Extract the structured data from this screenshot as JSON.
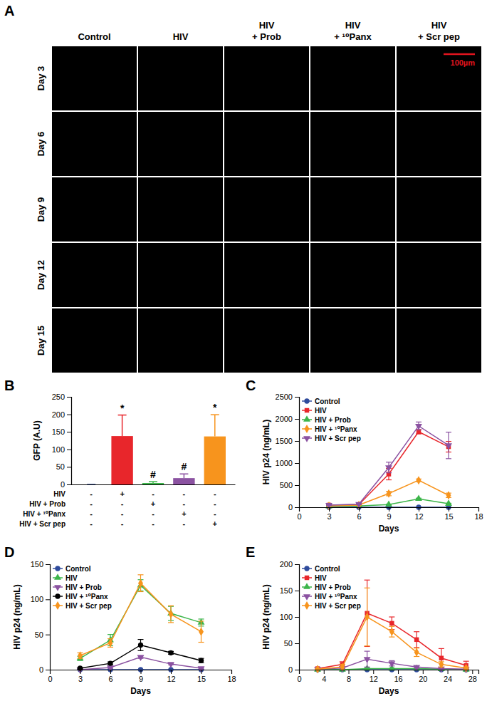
{
  "chart_data": [
    {
      "type": "image_grid",
      "panel": "A",
      "columns": [
        "Control",
        "HIV",
        "HIV + Prob",
        "HIV + ¹⁰Panx",
        "HIV + Scr pep"
      ],
      "rows": [
        "Day 3",
        "Day 6",
        "Day 9",
        "Day 12",
        "Day 15"
      ],
      "scale_bar": "100µm"
    },
    {
      "type": "bar",
      "panel": "B",
      "y_label": "GFP (A.U)",
      "categories": [
        null,
        null,
        null,
        null,
        null
      ],
      "values": [
        0,
        138,
        4,
        18,
        137
      ],
      "errors": [
        0,
        60,
        4,
        12,
        62
      ],
      "colors": [
        "#2f4b9c",
        "#e8262b",
        "#3cb54a",
        "#8b52a1",
        "#f7941d"
      ],
      "annotations": [
        null,
        "*",
        "#",
        "#",
        "*"
      ],
      "conditions": {
        "labels": [
          "HIV",
          "HIV + Prob",
          "HIV + ¹⁰Panx",
          "HIV + Scr pep"
        ],
        "signs": [
          [
            "-",
            "+",
            "-",
            "-",
            "-"
          ],
          [
            "-",
            "-",
            "+",
            "-",
            "-"
          ],
          [
            "-",
            "-",
            "-",
            "+",
            "-"
          ],
          [
            "-",
            "-",
            "-",
            "-",
            "+"
          ]
        ]
      },
      "ylim": [
        0,
        250
      ],
      "yticks": [
        0,
        50,
        100,
        150,
        200,
        250
      ],
      "grid": false
    },
    {
      "type": "line",
      "panel": "C",
      "x_label": "Days",
      "y_label": "HIV p24 (ng/mL)",
      "x": [
        3,
        6,
        9,
        12,
        15
      ],
      "xlim": [
        0,
        18
      ],
      "xticks": [
        0,
        3,
        6,
        9,
        12,
        15,
        18
      ],
      "ylim": [
        0,
        2500
      ],
      "yticks": [
        0,
        500,
        1000,
        1500,
        2000,
        2500
      ],
      "legend": "top-left",
      "grid": false,
      "series": [
        {
          "name": "Control",
          "color": "#2f4b9c",
          "marker": "circle",
          "values": [
            0,
            0,
            0,
            0,
            0
          ],
          "errors": [
            0,
            0,
            0,
            0,
            0
          ]
        },
        {
          "name": "HIV",
          "color": "#e8262b",
          "marker": "square",
          "values": [
            50,
            60,
            750,
            1710,
            1370
          ],
          "errors": [
            10,
            10,
            130,
            50,
            120
          ]
        },
        {
          "name": "HIV + Prob",
          "color": "#3cb54a",
          "marker": "triangle",
          "values": [
            20,
            30,
            60,
            190,
            80
          ],
          "errors": [
            5,
            5,
            10,
            15,
            10
          ]
        },
        {
          "name": "HIV + ¹⁰Panx",
          "color": "#f7941d",
          "marker": "diamond",
          "values": [
            30,
            50,
            310,
            610,
            270
          ],
          "errors": [
            5,
            5,
            50,
            30,
            50
          ]
        },
        {
          "name": "HIV + Scr pep",
          "color": "#8b52a1",
          "marker": "triangle-down",
          "values": [
            50,
            70,
            900,
            1840,
            1400
          ],
          "errors": [
            10,
            10,
            120,
            90,
            300
          ]
        }
      ]
    },
    {
      "type": "line",
      "panel": "D",
      "x_label": "Days",
      "y_label": "HIV p24 (ng/mL)",
      "x": [
        3,
        6,
        9,
        12,
        15
      ],
      "xlim": [
        0,
        18
      ],
      "xticks": [
        0,
        3,
        6,
        9,
        12,
        15,
        18
      ],
      "ylim": [
        0,
        150
      ],
      "yticks": [
        0,
        50,
        100,
        150
      ],
      "legend": "top-left",
      "grid": false,
      "series": [
        {
          "name": "Control",
          "color": "#2f4b9c",
          "marker": "circle",
          "values": [
            0,
            0,
            0,
            0,
            0
          ],
          "errors": [
            0,
            0,
            0,
            0,
            0
          ]
        },
        {
          "name": "HIV",
          "color": "#3cb54a",
          "marker": "triangle",
          "values": [
            16,
            42,
            120,
            80,
            67
          ],
          "errors": [
            3,
            8,
            8,
            10,
            5
          ]
        },
        {
          "name": "HIV + Prob",
          "color": "#8b52a1",
          "marker": "triangle-down",
          "values": [
            0,
            3,
            18,
            8,
            2
          ],
          "errors": [
            0,
            1,
            2,
            1,
            1
          ]
        },
        {
          "name": "HIV + ¹⁰Panx",
          "color": "#000000",
          "marker": "circle",
          "values": [
            2,
            9,
            35,
            24,
            13
          ],
          "errors": [
            1,
            2,
            8,
            2,
            3
          ]
        },
        {
          "name": "HIV + Scr pep",
          "color": "#f7941d",
          "marker": "diamond",
          "values": [
            20,
            38,
            123,
            79,
            54
          ],
          "errors": [
            4,
            6,
            12,
            12,
            15
          ]
        }
      ]
    },
    {
      "type": "line",
      "panel": "E",
      "x_label": "Days",
      "y_label": "HIV p24 (ng/mL)",
      "x": [
        3,
        7,
        11,
        15,
        19,
        23,
        27
      ],
      "xlim": [
        0,
        29
      ],
      "xticks": [
        0,
        4,
        8,
        12,
        16,
        20,
        24,
        28
      ],
      "ylim": [
        0,
        200
      ],
      "yticks": [
        0,
        50,
        100,
        150,
        200
      ],
      "legend": "top-left",
      "grid": false,
      "series": [
        {
          "name": "Control",
          "color": "#2f4b9c",
          "marker": "circle",
          "values": [
            0,
            0,
            0,
            0,
            0,
            0,
            0
          ],
          "errors": [
            0,
            0,
            0,
            0,
            0,
            0,
            0
          ]
        },
        {
          "name": "HIV",
          "color": "#e8262b",
          "marker": "square",
          "values": [
            2,
            10,
            107,
            88,
            57,
            22,
            8
          ],
          "errors": [
            1,
            5,
            63,
            12,
            15,
            18,
            8
          ]
        },
        {
          "name": "HIV + Prob",
          "color": "#3cb54a",
          "marker": "triangle",
          "values": [
            0,
            0,
            2,
            2,
            2,
            1,
            0
          ],
          "errors": [
            0,
            0,
            1,
            1,
            1,
            0,
            0
          ]
        },
        {
          "name": "HIV + ¹⁰Panx",
          "color": "#8b52a1",
          "marker": "triangle-down",
          "values": [
            1,
            3,
            20,
            12,
            5,
            2,
            1
          ],
          "errors": [
            0,
            1,
            15,
            5,
            2,
            1,
            0
          ]
        },
        {
          "name": "HIV + Scr pep",
          "color": "#f7941d",
          "marker": "diamond",
          "values": [
            1,
            5,
            100,
            72,
            33,
            10,
            3
          ],
          "errors": [
            1,
            5,
            55,
            10,
            8,
            5,
            2
          ]
        }
      ]
    }
  ]
}
